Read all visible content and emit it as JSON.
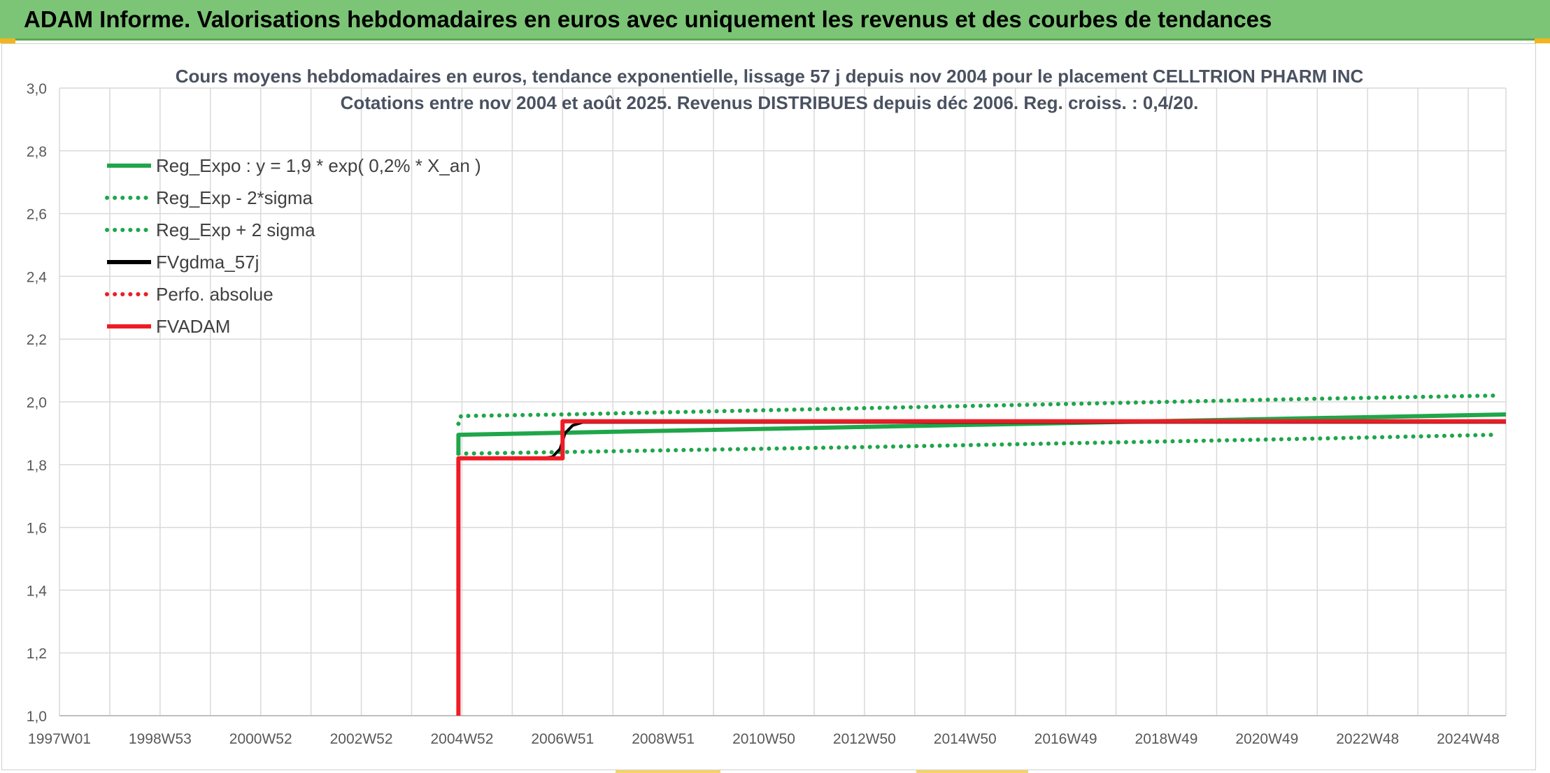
{
  "banner": {
    "title": "ADAM Informe. Valorisations hebdomadaires en euros avec uniquement les revenus et des courbes de tendances"
  },
  "colors": {
    "banner_bg": "#7cc576",
    "green": "#1fa64a",
    "red": "#ee1c25",
    "black": "#000000",
    "grid": "#d9d9d9"
  },
  "chart_data": {
    "type": "line",
    "title_line1": "Cours moyens hebdomadaires en euros, tendance exponentielle, lissage 57 j depuis nov 2004 pour le placement CELLTRION PHARM INC",
    "title_line2": "Cotations entre nov 2004 et août 2025. Revenus DISTRIBUES depuis déc 2006. Reg. croiss. : 0,4/20.",
    "xlabel": "",
    "ylabel": "",
    "ylim": [
      1.0,
      3.0
    ],
    "xlim": [
      1997.0,
      2025.75
    ],
    "y_ticks": [
      "1,0",
      "1,2",
      "1,4",
      "1,6",
      "1,8",
      "2,0",
      "2,2",
      "2,4",
      "2,6",
      "2,8",
      "3,0"
    ],
    "y_tick_values": [
      1.0,
      1.2,
      1.4,
      1.6,
      1.8,
      2.0,
      2.2,
      2.4,
      2.6,
      2.8,
      3.0
    ],
    "x_ticks": [
      "1997W01",
      "1998W53",
      "2000W52",
      "2002W52",
      "2004W52",
      "2006W51",
      "2008W51",
      "2010W50",
      "2012W50",
      "2014W50",
      "2016W49",
      "2018W49",
      "2020W49",
      "2022W48",
      "2024W48"
    ],
    "x_tick_values": [
      1997.0,
      1999.0,
      2001.0,
      2003.0,
      2005.0,
      2007.0,
      2009.0,
      2011.0,
      2013.0,
      2015.0,
      2017.0,
      2019.0,
      2021.0,
      2023.0,
      2025.0
    ],
    "grid": true,
    "legend_position": "top-left",
    "series": [
      {
        "name": "Reg_Expo : y = 1,9 * exp( 0,2% *  X_an )",
        "style": "solid",
        "color": "#1fa64a",
        "x": [
          2004.93,
          2004.93,
          2025.75
        ],
        "y": [
          1.83,
          1.895,
          1.96
        ]
      },
      {
        "name": "Reg_Exp - 2*sigma",
        "style": "dotted",
        "color": "#1fa64a",
        "x": [
          2004.93,
          2007.0,
          2010.0,
          2013.0,
          2016.0,
          2019.0,
          2022.0,
          2025.5
        ],
        "y": [
          1.835,
          1.84,
          1.848,
          1.856,
          1.865,
          1.874,
          1.883,
          1.895
        ]
      },
      {
        "name": "Reg_Exp + 2 sigma",
        "style": "dotted",
        "color": "#1fa64a",
        "x": [
          2004.93,
          2004.98,
          2007.0,
          2010.0,
          2013.0,
          2016.0,
          2019.0,
          2022.0,
          2025.5
        ],
        "y": [
          1.93,
          1.955,
          1.96,
          1.97,
          1.98,
          1.99,
          2.0,
          2.01,
          2.02
        ]
      },
      {
        "name": "FVgdma_57j",
        "style": "solid",
        "color": "#000000",
        "x": [
          2004.93,
          2006.6,
          2006.8,
          2006.95,
          2007.05,
          2007.2,
          2007.4,
          2025.75
        ],
        "y": [
          1.82,
          1.82,
          1.825,
          1.85,
          1.9,
          1.925,
          1.935,
          1.935
        ]
      },
      {
        "name": "Perfo. absolue",
        "style": "dotted",
        "color": "#ee1c25",
        "x": [],
        "y": []
      },
      {
        "name": "FVADAM",
        "style": "solid",
        "color": "#ee1c25",
        "x": [
          2004.93,
          2004.93,
          2007.0,
          2007.0,
          2025.75
        ],
        "y": [
          1.0,
          1.82,
          1.82,
          1.938,
          1.938
        ]
      }
    ]
  }
}
